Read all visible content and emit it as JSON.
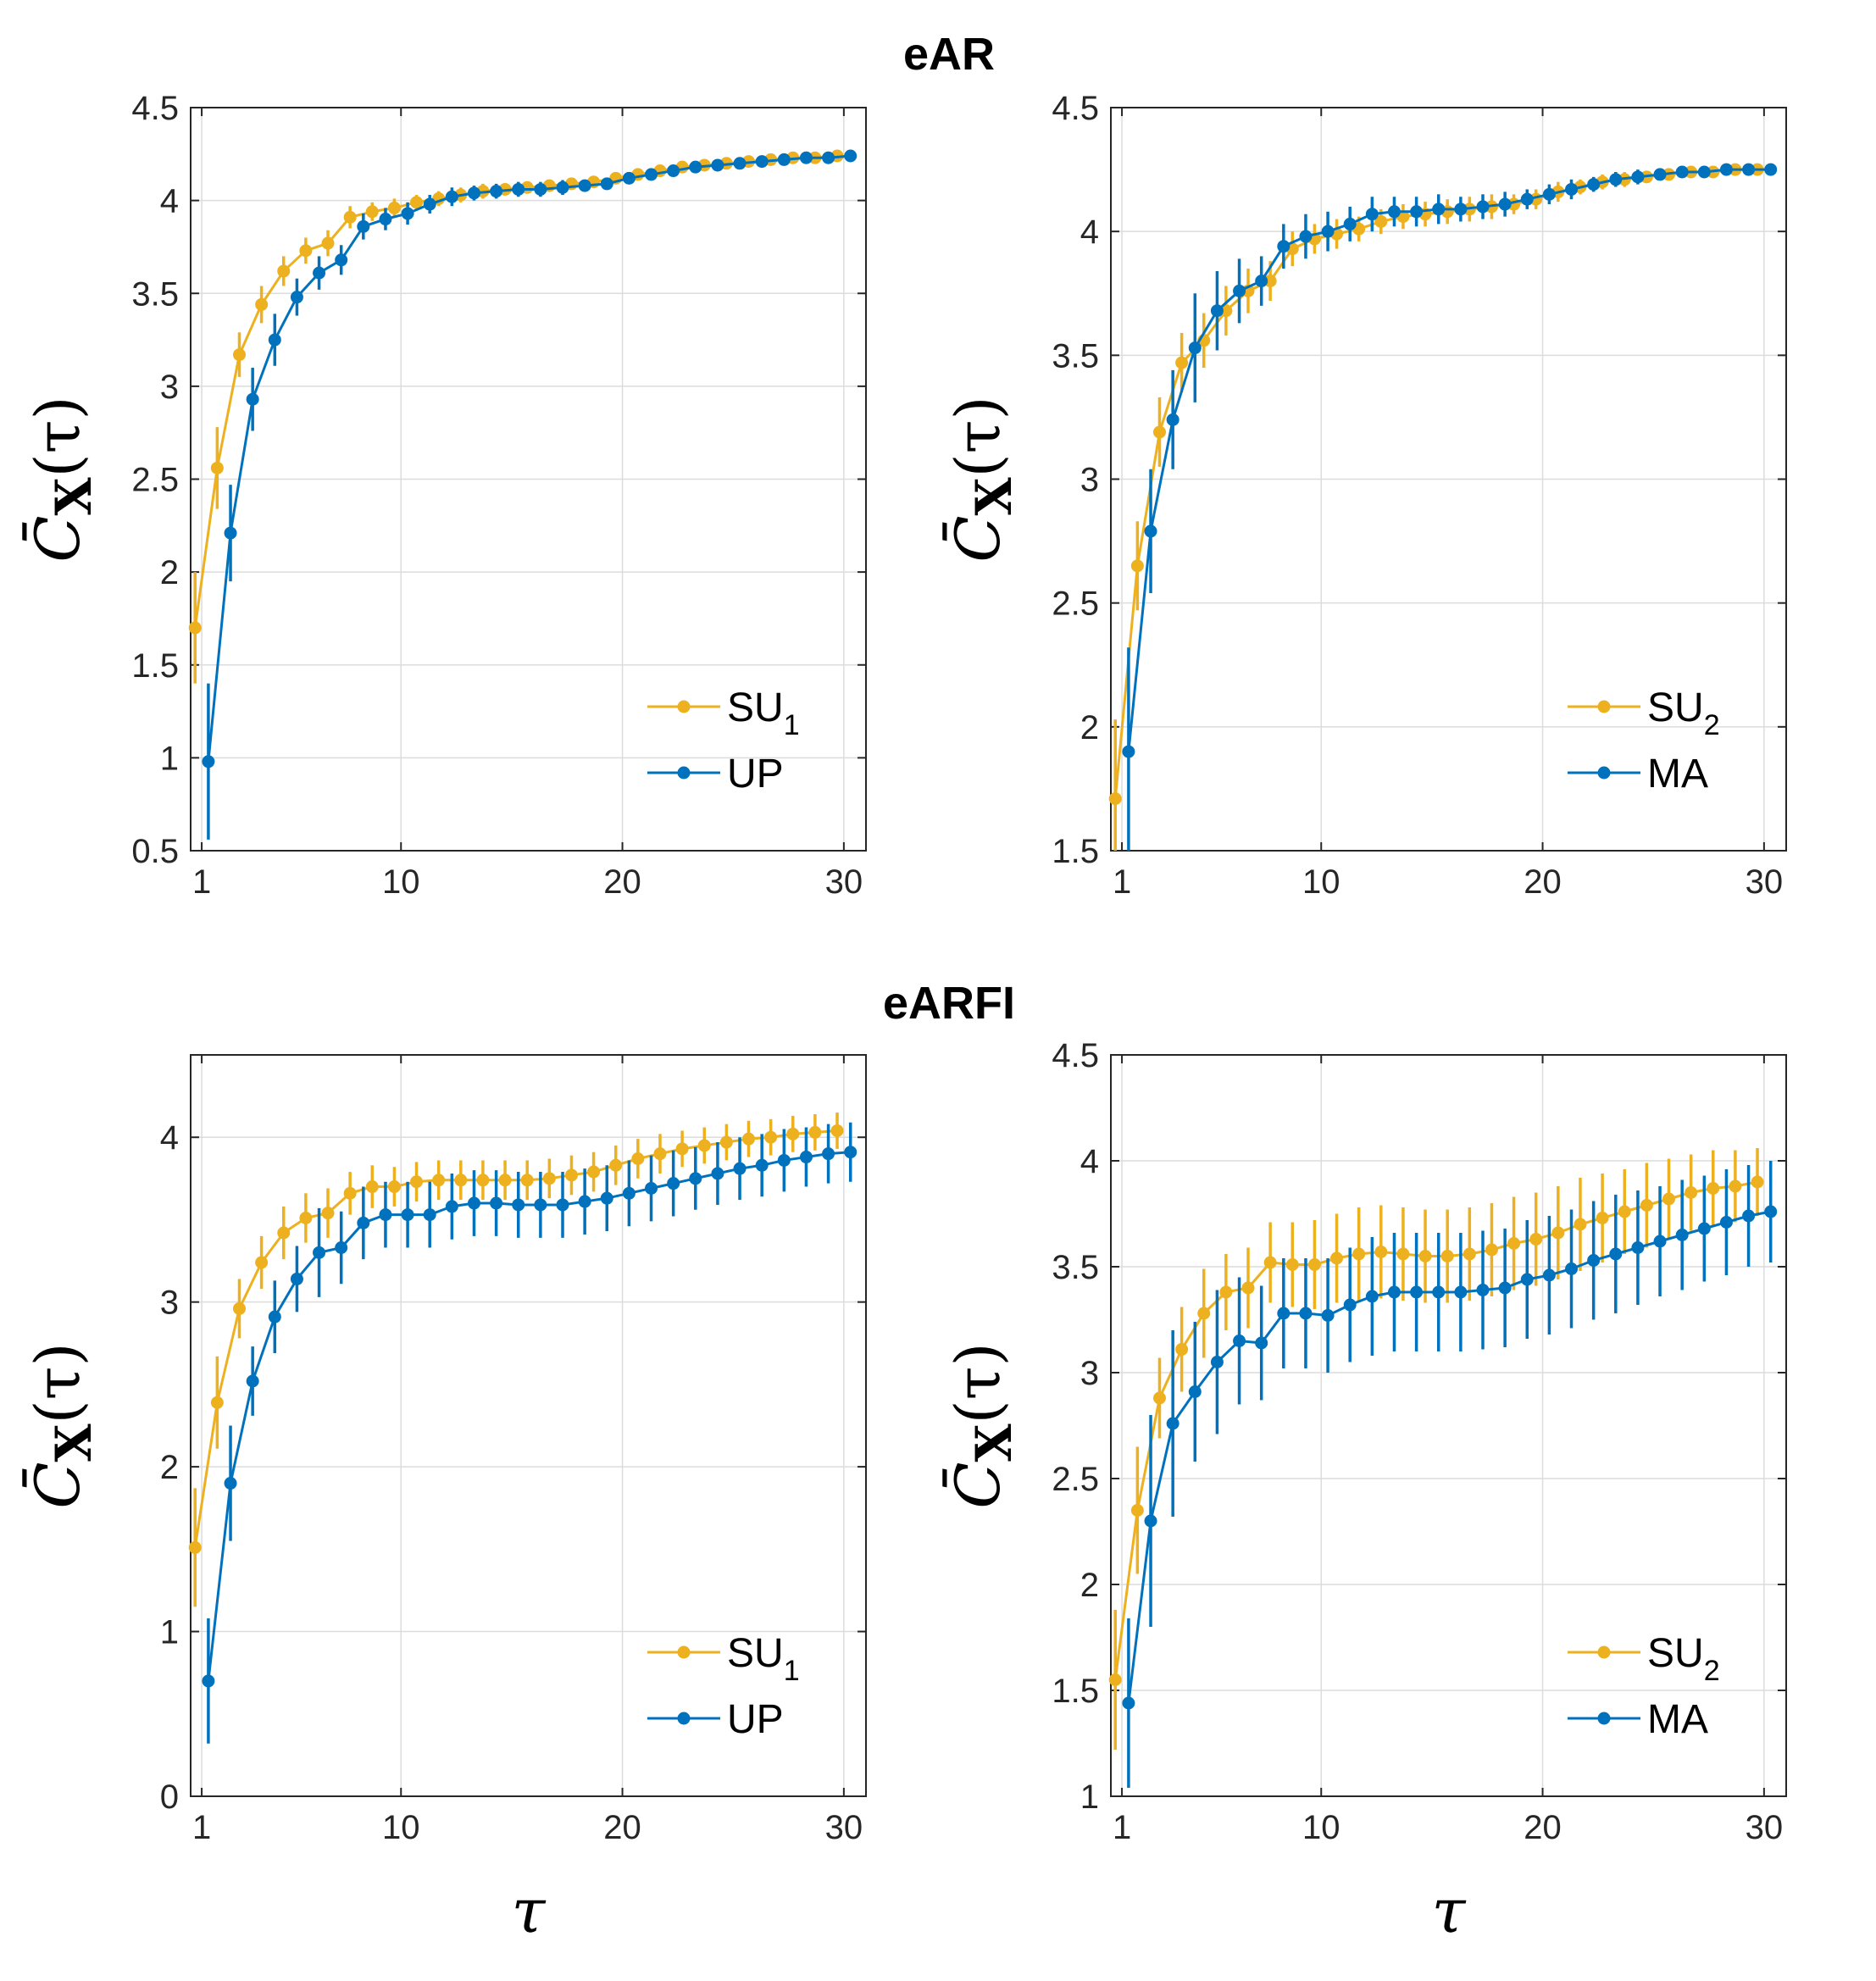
{
  "colors": {
    "yellow": "#EDB120",
    "blue": "#0072BD",
    "grid": "#dcdcdc",
    "axis": "#262626"
  },
  "group_titles": [
    "eAR",
    "eARFI"
  ],
  "chart_data": [
    {
      "type": "line",
      "group": "eAR",
      "ylabel": "C̄X(τ)",
      "xlabel": "",
      "xlim": [
        0.5,
        31
      ],
      "ylim": [
        0.5,
        4.5
      ],
      "xticks": [
        1,
        10,
        20,
        30
      ],
      "yticks": [
        "0.5",
        "1",
        "1.5",
        "2",
        "2.5",
        "3",
        "3.5",
        "4",
        "4.5"
      ],
      "legend_position": "bottom-right",
      "grid": true,
      "series": [
        {
          "name": "SU",
          "subscript": "1",
          "color": "yellow",
          "x_offset": -0.3,
          "values": [
            1.7,
            2.56,
            3.17,
            3.44,
            3.62,
            3.73,
            3.77,
            3.91,
            3.94,
            3.96,
            3.99,
            4.01,
            4.03,
            4.05,
            4.06,
            4.07,
            4.08,
            4.09,
            4.1,
            4.12,
            4.14,
            4.16,
            4.18,
            4.19,
            4.2,
            4.21,
            4.22,
            4.23,
            4.23,
            4.24
          ],
          "errors": [
            0.3,
            0.22,
            0.12,
            0.1,
            0.08,
            0.07,
            0.07,
            0.06,
            0.05,
            0.05,
            0.04,
            0.04,
            0.04,
            0.04,
            0.03,
            0.03,
            0.03,
            0.03,
            0.03,
            0.03,
            0.03,
            0.03,
            0.02,
            0.02,
            0.02,
            0.02,
            0.02,
            0.02,
            0.02,
            0.02
          ]
        },
        {
          "name": "UP",
          "subscript": "",
          "color": "blue",
          "x_offset": 0.3,
          "values": [
            0.98,
            2.21,
            2.93,
            3.25,
            3.48,
            3.61,
            3.68,
            3.86,
            3.9,
            3.93,
            3.98,
            4.02,
            4.04,
            4.05,
            4.06,
            4.06,
            4.07,
            4.08,
            4.09,
            4.12,
            4.14,
            4.16,
            4.18,
            4.19,
            4.2,
            4.21,
            4.22,
            4.23,
            4.23,
            4.24
          ],
          "errors": [
            0.42,
            0.26,
            0.17,
            0.14,
            0.1,
            0.09,
            0.08,
            0.07,
            0.06,
            0.06,
            0.05,
            0.05,
            0.04,
            0.04,
            0.04,
            0.04,
            0.04,
            0.03,
            0.03,
            0.03,
            0.03,
            0.03,
            0.02,
            0.02,
            0.02,
            0.02,
            0.02,
            0.02,
            0.02,
            0.02
          ]
        }
      ]
    },
    {
      "type": "line",
      "group": "eAR",
      "ylabel": "C̄X(τ)",
      "xlabel": "",
      "xlim": [
        0.5,
        31
      ],
      "ylim": [
        1.5,
        4.5
      ],
      "xticks": [
        1,
        10,
        20,
        30
      ],
      "yticks": [
        "1.5",
        "2",
        "2.5",
        "3",
        "3.5",
        "4",
        "4.5"
      ],
      "legend_position": "bottom-right",
      "grid": true,
      "series": [
        {
          "name": "SU",
          "subscript": "2",
          "color": "yellow",
          "x_offset": -0.3,
          "values": [
            1.71,
            2.65,
            3.19,
            3.47,
            3.56,
            3.68,
            3.76,
            3.8,
            3.93,
            3.97,
            3.99,
            4.01,
            4.04,
            4.06,
            4.07,
            4.08,
            4.09,
            4.1,
            4.11,
            4.13,
            4.16,
            4.18,
            4.2,
            4.21,
            4.22,
            4.23,
            4.24,
            4.24,
            4.25,
            4.25
          ],
          "errors": [
            0.32,
            0.18,
            0.14,
            0.12,
            0.11,
            0.1,
            0.09,
            0.08,
            0.07,
            0.06,
            0.06,
            0.05,
            0.05,
            0.05,
            0.05,
            0.05,
            0.05,
            0.05,
            0.04,
            0.04,
            0.04,
            0.03,
            0.03,
            0.03,
            0.02,
            0.02,
            0.02,
            0.02,
            0.02,
            0.02
          ]
        },
        {
          "name": "MA",
          "subscript": "",
          "color": "blue",
          "x_offset": 0.3,
          "values": [
            1.9,
            2.79,
            3.24,
            3.53,
            3.68,
            3.76,
            3.8,
            3.94,
            3.98,
            4.0,
            4.03,
            4.07,
            4.08,
            4.08,
            4.09,
            4.09,
            4.1,
            4.11,
            4.13,
            4.15,
            4.17,
            4.19,
            4.21,
            4.22,
            4.23,
            4.24,
            4.24,
            4.25,
            4.25,
            4.25
          ],
          "errors": [
            0.42,
            0.25,
            0.2,
            0.22,
            0.16,
            0.13,
            0.1,
            0.09,
            0.09,
            0.08,
            0.07,
            0.07,
            0.06,
            0.06,
            0.06,
            0.05,
            0.05,
            0.05,
            0.04,
            0.04,
            0.04,
            0.03,
            0.03,
            0.03,
            0.02,
            0.02,
            0.02,
            0.02,
            0.02,
            0.02
          ]
        }
      ]
    },
    {
      "type": "line",
      "group": "eARFI",
      "ylabel": "C̄X(τ)",
      "xlabel": "τ",
      "xlim": [
        0.5,
        31
      ],
      "ylim": [
        0,
        4.5
      ],
      "xticks": [
        1,
        10,
        20,
        30
      ],
      "yticks": [
        "0",
        "1",
        "2",
        "3",
        "4"
      ],
      "legend_position": "bottom-right",
      "grid": true,
      "series": [
        {
          "name": "SU",
          "subscript": "1",
          "color": "yellow",
          "x_offset": -0.3,
          "values": [
            1.51,
            2.39,
            2.96,
            3.24,
            3.42,
            3.51,
            3.54,
            3.66,
            3.7,
            3.7,
            3.73,
            3.74,
            3.74,
            3.74,
            3.74,
            3.74,
            3.75,
            3.77,
            3.79,
            3.83,
            3.87,
            3.9,
            3.93,
            3.95,
            3.97,
            3.99,
            4.0,
            4.02,
            4.03,
            4.04
          ],
          "errors": [
            0.36,
            0.28,
            0.18,
            0.16,
            0.16,
            0.15,
            0.15,
            0.13,
            0.13,
            0.12,
            0.12,
            0.12,
            0.12,
            0.12,
            0.12,
            0.12,
            0.12,
            0.12,
            0.12,
            0.12,
            0.12,
            0.12,
            0.11,
            0.11,
            0.11,
            0.11,
            0.11,
            0.11,
            0.11,
            0.11
          ]
        },
        {
          "name": "UP",
          "subscript": "",
          "color": "blue",
          "x_offset": 0.3,
          "values": [
            0.7,
            1.9,
            2.52,
            2.91,
            3.14,
            3.3,
            3.33,
            3.48,
            3.53,
            3.53,
            3.53,
            3.58,
            3.6,
            3.6,
            3.59,
            3.59,
            3.59,
            3.61,
            3.63,
            3.66,
            3.69,
            3.72,
            3.75,
            3.78,
            3.81,
            3.83,
            3.86,
            3.88,
            3.9,
            3.91
          ],
          "errors": [
            0.38,
            0.35,
            0.21,
            0.22,
            0.2,
            0.27,
            0.22,
            0.22,
            0.2,
            0.2,
            0.2,
            0.2,
            0.2,
            0.2,
            0.2,
            0.2,
            0.2,
            0.2,
            0.2,
            0.2,
            0.2,
            0.2,
            0.19,
            0.19,
            0.19,
            0.19,
            0.19,
            0.18,
            0.18,
            0.18
          ]
        }
      ]
    },
    {
      "type": "line",
      "group": "eARFI",
      "ylabel": "C̄X(τ)",
      "xlabel": "τ",
      "xlim": [
        0.5,
        31
      ],
      "ylim": [
        1,
        4.5
      ],
      "xticks": [
        1,
        10,
        20,
        30
      ],
      "yticks": [
        "1",
        "1.5",
        "2",
        "2.5",
        "3",
        "3.5",
        "4",
        "4.5"
      ],
      "legend_position": "bottom-right",
      "grid": true,
      "series": [
        {
          "name": "SU",
          "subscript": "2",
          "color": "yellow",
          "x_offset": -0.3,
          "values": [
            1.55,
            2.35,
            2.88,
            3.11,
            3.28,
            3.38,
            3.4,
            3.52,
            3.51,
            3.51,
            3.54,
            3.56,
            3.57,
            3.56,
            3.55,
            3.55,
            3.56,
            3.58,
            3.61,
            3.63,
            3.66,
            3.7,
            3.73,
            3.76,
            3.79,
            3.82,
            3.85,
            3.87,
            3.88,
            3.9
          ],
          "errors": [
            0.33,
            0.3,
            0.19,
            0.2,
            0.21,
            0.18,
            0.19,
            0.19,
            0.2,
            0.21,
            0.21,
            0.22,
            0.22,
            0.22,
            0.22,
            0.22,
            0.22,
            0.22,
            0.22,
            0.22,
            0.22,
            0.22,
            0.21,
            0.2,
            0.2,
            0.19,
            0.18,
            0.18,
            0.17,
            0.16
          ]
        },
        {
          "name": "MA",
          "subscript": "",
          "color": "blue",
          "x_offset": 0.3,
          "values": [
            1.44,
            2.3,
            2.76,
            2.91,
            3.05,
            3.15,
            3.14,
            3.28,
            3.28,
            3.27,
            3.32,
            3.36,
            3.38,
            3.38,
            3.38,
            3.38,
            3.39,
            3.4,
            3.44,
            3.46,
            3.49,
            3.53,
            3.56,
            3.59,
            3.62,
            3.65,
            3.68,
            3.71,
            3.74,
            3.76
          ],
          "errors": [
            0.4,
            0.5,
            0.44,
            0.33,
            0.34,
            0.3,
            0.27,
            0.26,
            0.26,
            0.27,
            0.27,
            0.28,
            0.28,
            0.28,
            0.28,
            0.28,
            0.28,
            0.28,
            0.28,
            0.28,
            0.28,
            0.28,
            0.28,
            0.27,
            0.26,
            0.26,
            0.25,
            0.25,
            0.24,
            0.24
          ]
        }
      ]
    }
  ]
}
